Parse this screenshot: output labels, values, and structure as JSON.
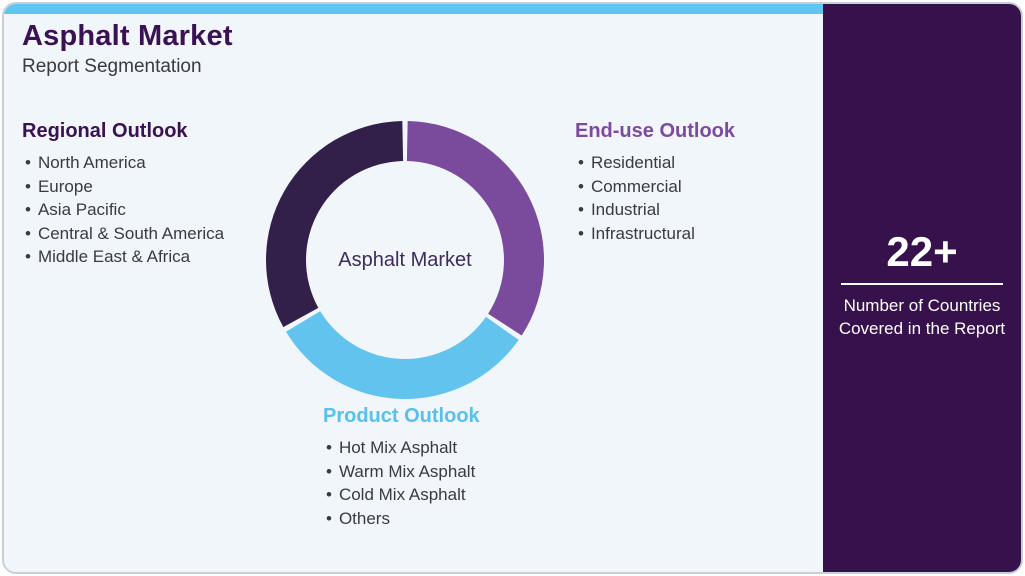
{
  "header": {
    "title": "Asphalt Market",
    "subtitle": "Report Segmentation"
  },
  "sections": {
    "regional": {
      "heading": "Regional Outlook",
      "accent": "#3a1153",
      "items": [
        "North America",
        "Europe",
        "Asia Pacific",
        "Central & South America",
        "Middle East & Africa"
      ]
    },
    "end_use": {
      "heading": "End-use Outlook",
      "accent": "#7c4ba1",
      "items": [
        "Residential",
        "Commercial",
        "Industrial",
        "Infrastructural"
      ]
    },
    "product": {
      "heading": "Product Outlook",
      "accent": "#56c0ee",
      "items": [
        "Hot Mix Asphalt",
        "Warm Mix Asphalt",
        "Cold Mix Asphalt",
        "Others"
      ]
    }
  },
  "chart_data": {
    "type": "donut",
    "title": "Asphalt Market Report Segmentation",
    "center_label": "Asphalt Market",
    "values_shown": false,
    "segments": [
      {
        "name": "End-use Outlook",
        "color": "#7a4a9d",
        "start_deg": 0,
        "end_deg": 124,
        "share_pct": 34.4
      },
      {
        "name": "Product Outlook",
        "color": "#62c4ee",
        "start_deg": 124,
        "end_deg": 240,
        "share_pct": 32.2
      },
      {
        "name": "Regional Outlook",
        "color": "#33204a",
        "start_deg": 240,
        "end_deg": 360,
        "share_pct": 33.4
      }
    ],
    "gap_deg": 2.2,
    "outer_radius": 139,
    "inner_radius": 99,
    "legend_position": "none",
    "grid": false
  },
  "stat_panel": {
    "value": "22+",
    "label_lines": [
      "Number of Countries",
      "Covered in the Report"
    ],
    "background": "#36114b"
  },
  "colors": {
    "top_bar": "#5ec6f1",
    "card_background": "#f1f6fa",
    "frame_border": "#c9cfd6",
    "body_text": "#3a3a41"
  }
}
